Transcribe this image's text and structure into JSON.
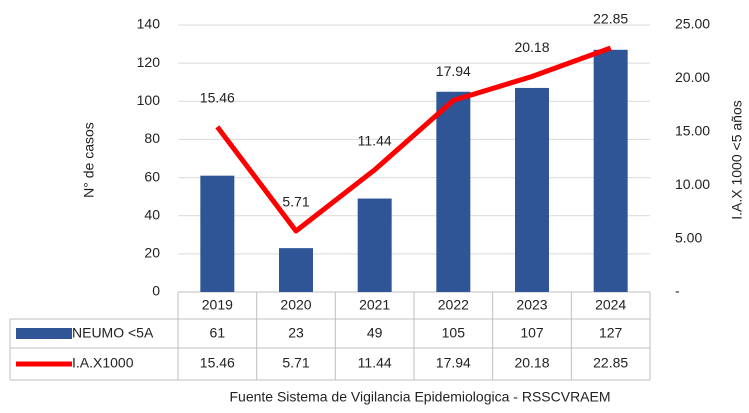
{
  "chart_data": {
    "type": "bar-line",
    "categories": [
      "2019",
      "2020",
      "2021",
      "2022",
      "2023",
      "2024"
    ],
    "series": [
      {
        "name": "NEUMO <5A",
        "color": "#2f5597",
        "values": [
          61,
          23,
          49,
          105,
          107,
          127
        ]
      },
      {
        "name": "I.A.X1000",
        "color": "#ff0000",
        "axis": "y2",
        "values": [
          15.46,
          5.71,
          11.44,
          17.94,
          20.18,
          22.85
        ]
      }
    ],
    "ylabel": "N° de casos",
    "y2label": "I.A.X 1000 <5 años",
    "ylim": [
      0,
      140
    ],
    "yticks": [
      0,
      20,
      40,
      60,
      80,
      100,
      120,
      140
    ],
    "y2lim": [
      0,
      25
    ],
    "y2ticks": [
      {
        "value": 0,
        "label": "-"
      },
      {
        "value": 5,
        "label": "5.00"
      },
      {
        "value": 10,
        "label": "10.00"
      },
      {
        "value": 15,
        "label": "15.00"
      },
      {
        "value": 20,
        "label": "20.00"
      },
      {
        "value": 25,
        "label": "25.00"
      }
    ],
    "grid": true,
    "note": "Fuente Sistema de Vigilancia Epidemiologica - RSSCVRAEM"
  }
}
